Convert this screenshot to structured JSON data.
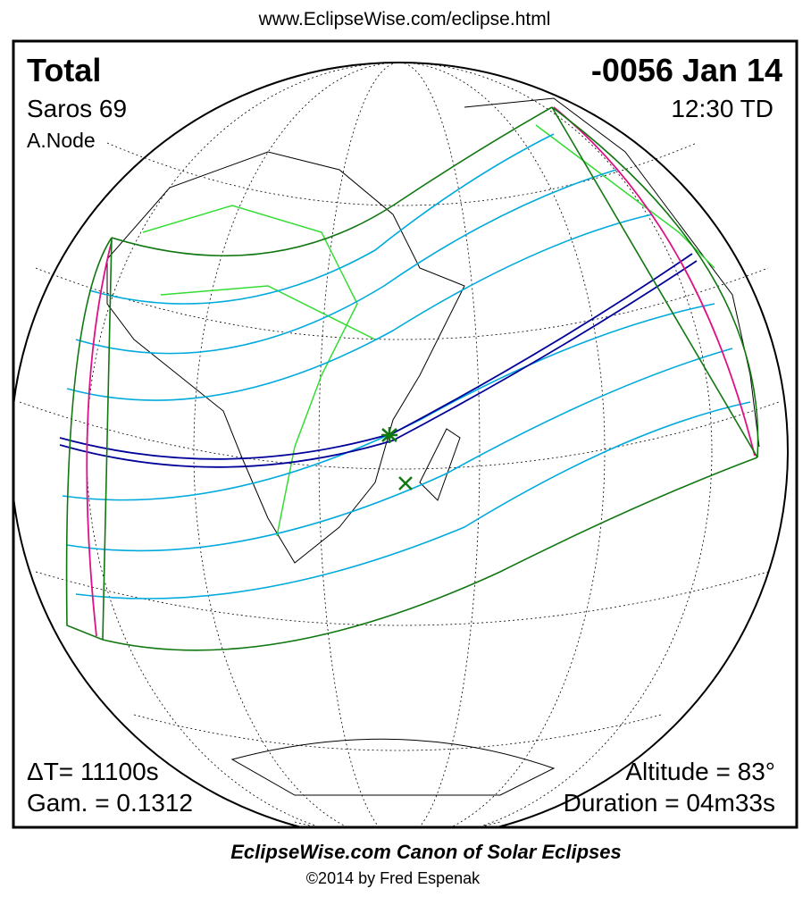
{
  "header": {
    "url": "www.EclipseWise.com/eclipse.html"
  },
  "panel": {
    "eclipse_type": "Total",
    "date": "-0056 Jan 14",
    "saros": "Saros  69",
    "time": "12:30 TD",
    "node": "A.Node",
    "delta_t": "ΔT=  11100s",
    "altitude": "Altitude = 83°",
    "gamma": "Gam. = 0.1312",
    "duration": "Duration = 04m33s"
  },
  "footer": {
    "title": "EclipseWise.com Canon of Solar Eclipses",
    "copyright": "©2014 by Fred Espenak"
  }
}
